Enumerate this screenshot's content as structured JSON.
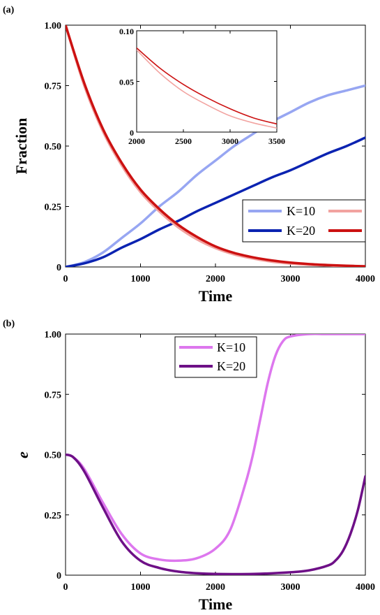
{
  "chart_data": [
    {
      "panel_label": "(a)",
      "type": "line",
      "xlabel": "Time",
      "ylabel": "Fraction",
      "xlim": [
        0,
        4000
      ],
      "ylim": [
        0,
        1
      ],
      "xticks": [
        0,
        1000,
        2000,
        3000,
        4000
      ],
      "xtick_labels": [
        "0",
        "1000",
        "2000",
        "3000",
        "4000"
      ],
      "yticks": [
        0,
        0.25,
        0.5,
        0.75,
        1.0
      ],
      "ytick_labels": [
        "0",
        "0.25",
        "0.50",
        "0.75",
        "1.00"
      ],
      "grid": false,
      "legend_position": "bottom-right",
      "series": [
        {
          "name": "K=10",
          "legend_col": 0,
          "color": "#97a6f2",
          "x": [
            0,
            250,
            500,
            750,
            1000,
            1250,
            1500,
            1750,
            2000,
            2250,
            2500,
            2750,
            3000,
            3250,
            3500,
            3750,
            4000
          ],
          "y": [
            0,
            0.02,
            0.06,
            0.12,
            0.18,
            0.25,
            0.31,
            0.38,
            0.44,
            0.5,
            0.55,
            0.6,
            0.64,
            0.68,
            0.71,
            0.73,
            0.75
          ]
        },
        {
          "name": "K=20",
          "legend_col": 0,
          "color": "#0b23b1",
          "x": [
            0,
            250,
            500,
            750,
            1000,
            1250,
            1500,
            1750,
            2000,
            2250,
            2500,
            2750,
            3000,
            3250,
            3500,
            3750,
            4000
          ],
          "y": [
            0,
            0.015,
            0.04,
            0.08,
            0.115,
            0.155,
            0.19,
            0.23,
            0.265,
            0.3,
            0.335,
            0.37,
            0.4,
            0.435,
            0.47,
            0.5,
            0.535
          ]
        },
        {
          "name": "K=10",
          "legend_col": 1,
          "color": "#f2a3a0",
          "x": [
            0,
            250,
            500,
            750,
            1000,
            1250,
            1500,
            1750,
            2000,
            2250,
            2500,
            2750,
            3000,
            3250,
            3500,
            3750,
            4000
          ],
          "y": [
            1.0,
            0.75,
            0.56,
            0.42,
            0.31,
            0.23,
            0.165,
            0.115,
            0.078,
            0.052,
            0.035,
            0.022,
            0.014,
            0.009,
            0.006,
            0.003,
            0.002
          ]
        },
        {
          "name": "K=20",
          "legend_col": 1,
          "color": "#cc1111",
          "x": [
            0,
            250,
            500,
            750,
            1000,
            1250,
            1500,
            1750,
            2000,
            2250,
            2500,
            2750,
            3000,
            3250,
            3500,
            3750,
            4000
          ],
          "y": [
            1.0,
            0.76,
            0.57,
            0.43,
            0.32,
            0.24,
            0.175,
            0.125,
            0.085,
            0.058,
            0.04,
            0.027,
            0.018,
            0.012,
            0.008,
            0.005,
            0.003
          ]
        }
      ],
      "inset": {
        "xlim": [
          2000,
          3500
        ],
        "ylim": [
          0,
          0.1
        ],
        "xticks": [
          2000,
          2500,
          3000,
          3500
        ],
        "xtick_labels": [
          "2000",
          "2500",
          "3000",
          "3500"
        ],
        "yticks": [
          0,
          0.05,
          0.1
        ],
        "ytick_labels": [
          "0",
          "0.05",
          "0.10"
        ],
        "series": [
          {
            "color": "#f2a3a0",
            "x": [
              2000,
              2250,
              2500,
              2750,
              3000,
              3250,
              3500
            ],
            "y": [
              0.081,
              0.058,
              0.04,
              0.027,
              0.016,
              0.009,
              0.004
            ]
          },
          {
            "color": "#cc1111",
            "x": [
              2000,
              2250,
              2500,
              2750,
              3000,
              3250,
              3500
            ],
            "y": [
              0.083,
              0.063,
              0.047,
              0.034,
              0.023,
              0.014,
              0.008
            ]
          }
        ]
      }
    },
    {
      "panel_label": "(b)",
      "type": "line",
      "xlabel": "Time",
      "ylabel": "e",
      "xlim": [
        0,
        4000
      ],
      "ylim": [
        0,
        1
      ],
      "xticks": [
        0,
        1000,
        2000,
        3000,
        4000
      ],
      "xtick_labels": [
        "0",
        "1000",
        "2000",
        "3000",
        "4000"
      ],
      "yticks": [
        0,
        0.25,
        0.5,
        0.75,
        1.0
      ],
      "ytick_labels": [
        "0",
        "0.25",
        "0.50",
        "0.75",
        "1.00"
      ],
      "grid": false,
      "legend_position": "top-center",
      "series": [
        {
          "name": "K=10",
          "color": "#dd77ee",
          "x": [
            0,
            100,
            250,
            500,
            750,
            1000,
            1250,
            1500,
            1750,
            2000,
            2200,
            2400,
            2500,
            2600,
            2700,
            2800,
            2900,
            3000,
            3250,
            3500,
            4000
          ],
          "y": [
            0.5,
            0.49,
            0.44,
            0.3,
            0.17,
            0.09,
            0.065,
            0.06,
            0.07,
            0.11,
            0.19,
            0.38,
            0.5,
            0.65,
            0.8,
            0.91,
            0.97,
            0.99,
            1.0,
            1.0,
            1.0
          ]
        },
        {
          "name": "K=20",
          "color": "#6e1087",
          "x": [
            0,
            100,
            250,
            500,
            750,
            1000,
            1250,
            1500,
            1750,
            2000,
            2500,
            3000,
            3250,
            3500,
            3600,
            3700,
            3800,
            3900,
            4000
          ],
          "y": [
            0.5,
            0.49,
            0.43,
            0.28,
            0.14,
            0.06,
            0.03,
            0.015,
            0.008,
            0.005,
            0.005,
            0.012,
            0.02,
            0.04,
            0.06,
            0.1,
            0.17,
            0.27,
            0.41
          ]
        }
      ]
    }
  ]
}
